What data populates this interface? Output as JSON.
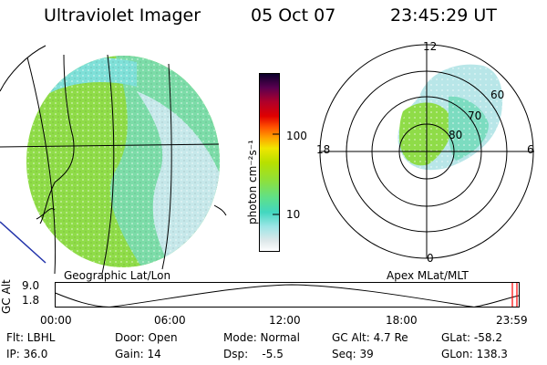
{
  "header": {
    "instrument": "Ultraviolet Imager",
    "date": "05 Oct 07",
    "time": "23:45:29 UT"
  },
  "colorbar": {
    "unit": "photon cm⁻²s⁻¹",
    "ticks": [
      "100",
      "10"
    ],
    "colors": [
      "#ffffff",
      "#dde8ea",
      "#c4e4ea",
      "#9ce6e6",
      "#5ad8d2",
      "#42d7c0",
      "#5ee08a",
      "#8fe03a",
      "#b8e000",
      "#f0e600",
      "#ffd000",
      "#ffa000",
      "#ff7000",
      "#ff3a00",
      "#e00000",
      "#b0002a",
      "#7a003a",
      "#3a0050",
      "#08002a"
    ]
  },
  "left_map": {
    "caption": "Geographic Lat/Lon"
  },
  "right_map": {
    "caption": "Apex MLat/MLT",
    "mlt_labels": {
      "top": "12",
      "left": "18",
      "right": "6",
      "bottom": "0"
    },
    "lat_labels": [
      "60",
      "70",
      "80"
    ]
  },
  "altitude_strip": {
    "ylabel": "GC Alt",
    "yticks": [
      "9.0",
      "1.8"
    ],
    "xticks": [
      "00:00",
      "06:00",
      "12:00",
      "18:00",
      "23:59"
    ],
    "current_marker_color": "#ff0000"
  },
  "info": {
    "flt": "Flt: LBHL",
    "ip": "IP: 36.0",
    "door": "Door: Open",
    "gain": "Gain: 14",
    "mode": "Mode: Normal",
    "dsp": "Dsp:    -5.5",
    "gc_alt": "GC Alt: 4.7 Re",
    "seq": "Seq: 39",
    "glat": "GLat: -58.2",
    "glon": "GLon: 138.3"
  }
}
